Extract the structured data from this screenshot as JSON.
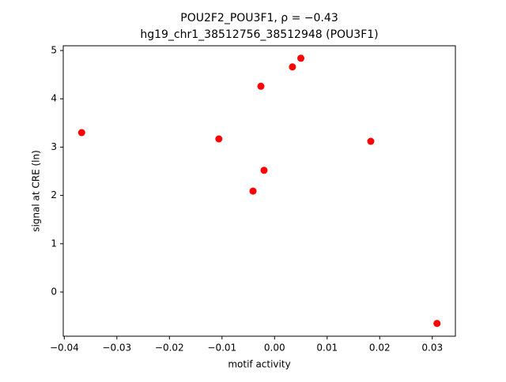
{
  "chart_data": {
    "type": "scatter",
    "title": "POU2F2_POU3F1, ρ = −0.43",
    "subtitle": "hg19_chr1_38512756_38512948 (POU3F1)",
    "x_label": "motif activity",
    "y_label": "signal at CRE (ln)",
    "color": "#ff0000",
    "x": [
      -0.0367,
      -0.0106,
      -0.0041,
      -0.002,
      -0.0026,
      0.0034,
      0.005,
      0.0183,
      0.0309
    ],
    "values": [
      3.3,
      3.17,
      2.09,
      2.52,
      4.26,
      4.66,
      4.84,
      3.12,
      -0.65
    ],
    "xlim": [
      -0.0402,
      0.0344
    ],
    "ylim": [
      -0.915,
      5.098
    ],
    "xticks": [
      {
        "value": -0.04,
        "label": "−0.04"
      },
      {
        "value": -0.03,
        "label": "−0.03"
      },
      {
        "value": -0.02,
        "label": "−0.02"
      },
      {
        "value": -0.01,
        "label": "−0.01"
      },
      {
        "value": 0,
        "label": "0.00"
      },
      0.01,
      0.02,
      0.03
    ],
    "yticks": [
      0,
      1,
      2,
      3,
      4,
      5
    ],
    "grid": false
  }
}
